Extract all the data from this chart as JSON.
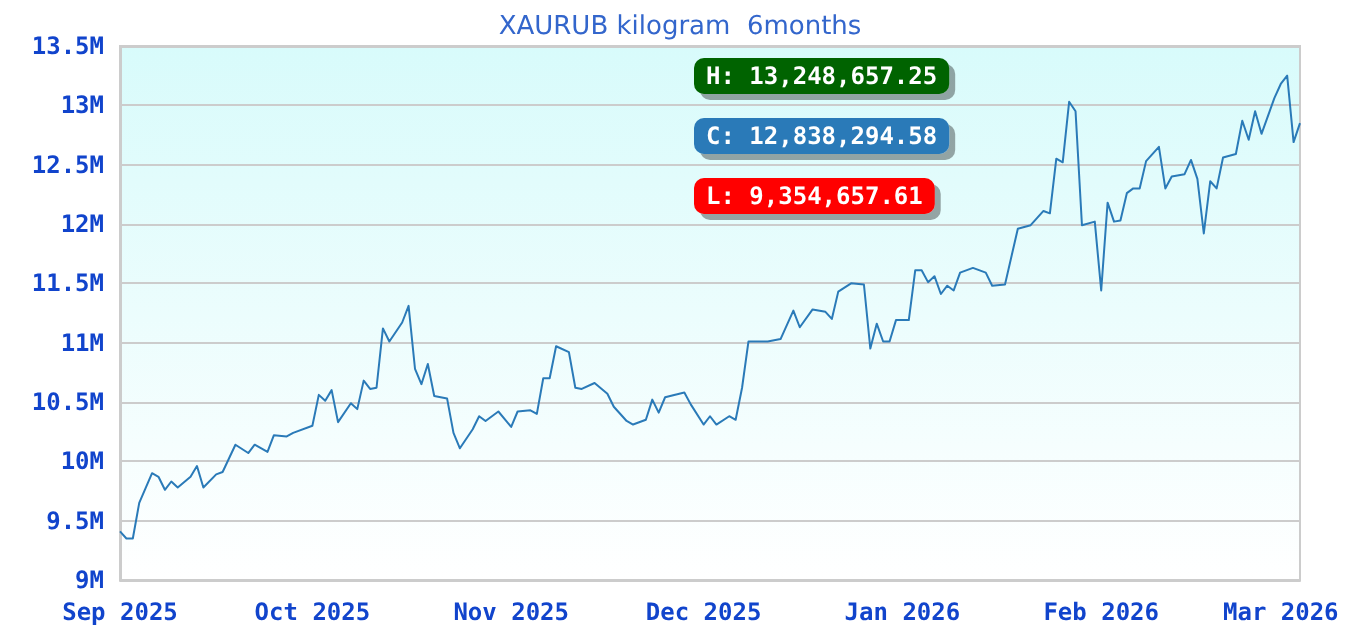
{
  "chart_data": {
    "type": "line",
    "title": "XAURUB kilogram  6months",
    "x": [
      "2025-09-01",
      "2025-09-02",
      "2025-09-03",
      "2025-09-04",
      "2025-09-06",
      "2025-09-07",
      "2025-09-08",
      "2025-09-09",
      "2025-09-10",
      "2025-09-12",
      "2025-09-13",
      "2025-09-14",
      "2025-09-16",
      "2025-09-17",
      "2025-09-19",
      "2025-09-21",
      "2025-09-22",
      "2025-09-24",
      "2025-09-25",
      "2025-09-27",
      "2025-09-28",
      "2025-10-01",
      "2025-10-02",
      "2025-10-03",
      "2025-10-04",
      "2025-10-05",
      "2025-10-07",
      "2025-10-08",
      "2025-10-09",
      "2025-10-10",
      "2025-10-11",
      "2025-10-12",
      "2025-10-13",
      "2025-10-15",
      "2025-10-16",
      "2025-10-17",
      "2025-10-18",
      "2025-10-19",
      "2025-10-20",
      "2025-10-22",
      "2025-10-23",
      "2025-10-24",
      "2025-10-26",
      "2025-10-27",
      "2025-10-28",
      "2025-10-30",
      "2025-11-01",
      "2025-11-02",
      "2025-11-04",
      "2025-11-05",
      "2025-11-06",
      "2025-11-07",
      "2025-11-08",
      "2025-11-10",
      "2025-11-11",
      "2025-11-12",
      "2025-11-14",
      "2025-11-16",
      "2025-11-17",
      "2025-11-19",
      "2025-11-20",
      "2025-11-22",
      "2025-11-23",
      "2025-11-24",
      "2025-11-25",
      "2025-11-28",
      "2025-11-29",
      "2025-12-01",
      "2025-12-02",
      "2025-12-03",
      "2025-12-05",
      "2025-12-06",
      "2025-12-07",
      "2025-12-08",
      "2025-12-11",
      "2025-12-13",
      "2025-12-15",
      "2025-12-16",
      "2025-12-18",
      "2025-12-20",
      "2025-12-21",
      "2025-12-22",
      "2025-12-24",
      "2025-12-26",
      "2025-12-27",
      "2025-12-28",
      "2025-12-29",
      "2025-12-30",
      "2025-12-31",
      "2026-01-02",
      "2026-01-03",
      "2026-01-04",
      "2026-01-05",
      "2026-01-06",
      "2026-01-07",
      "2026-01-08",
      "2026-01-09",
      "2026-01-10",
      "2026-01-12",
      "2026-01-14",
      "2026-01-15",
      "2026-01-17",
      "2026-01-19",
      "2026-01-21",
      "2026-01-23",
      "2026-01-24",
      "2026-01-25",
      "2026-01-26",
      "2026-01-27",
      "2026-01-28",
      "2026-01-29",
      "2026-01-31",
      "2026-02-01",
      "2026-02-02",
      "2026-02-03",
      "2026-02-04",
      "2026-02-05",
      "2026-02-06",
      "2026-02-07",
      "2026-02-08",
      "2026-02-10",
      "2026-02-11",
      "2026-02-12",
      "2026-02-14",
      "2026-02-15",
      "2026-02-16",
      "2026-02-17",
      "2026-02-18",
      "2026-02-19",
      "2026-02-20",
      "2026-02-22",
      "2026-02-23",
      "2026-02-24",
      "2026-02-25",
      "2026-02-26",
      "2026-02-28",
      "2026-03-01",
      "2026-03-02",
      "2026-03-03",
      "2026-03-04"
    ],
    "series": [
      {
        "color": "#2a7ab8",
        "values": [
          9410000,
          9350000,
          9350000,
          9650000,
          9900000,
          9870000,
          9760000,
          9830000,
          9780000,
          9870000,
          9960000,
          9780000,
          9890000,
          9910000,
          10140000,
          10070000,
          10140000,
          10080000,
          10220000,
          10210000,
          10240000,
          10300000,
          10560000,
          10510000,
          10600000,
          10330000,
          10490000,
          10440000,
          10680000,
          10610000,
          10620000,
          11120000,
          11010000,
          11170000,
          11310000,
          10780000,
          10650000,
          10820000,
          10550000,
          10530000,
          10240000,
          10110000,
          10270000,
          10380000,
          10340000,
          10420000,
          10290000,
          10420000,
          10430000,
          10400000,
          10700000,
          10700000,
          10970000,
          10920000,
          10620000,
          10610000,
          10660000,
          10570000,
          10460000,
          10340000,
          10310000,
          10350000,
          10520000,
          10410000,
          10540000,
          10580000,
          10480000,
          10310000,
          10380000,
          10310000,
          10380000,
          10350000,
          10620000,
          11010000,
          11010000,
          11030000,
          11270000,
          11130000,
          11280000,
          11260000,
          11200000,
          11430000,
          11500000,
          11490000,
          10950000,
          11160000,
          11010000,
          11010000,
          11190000,
          11190000,
          11610000,
          11610000,
          11510000,
          11560000,
          11410000,
          11480000,
          11440000,
          11590000,
          11630000,
          11590000,
          11480000,
          11490000,
          11960000,
          11990000,
          12110000,
          12090000,
          12550000,
          12520000,
          13030000,
          12950000,
          11990000,
          12020000,
          11440000,
          12180000,
          12020000,
          12030000,
          12260000,
          12300000,
          12300000,
          12530000,
          12650000,
          12300000,
          12400000,
          12420000,
          12540000,
          12380000,
          11920000,
          12360000,
          12300000,
          12560000,
          12590000,
          12870000,
          12710000,
          12950000,
          12760000,
          13060000,
          13180000,
          13250000,
          12690000,
          12850000
        ]
      }
    ],
    "xlim": [
      "2025-09-01",
      "2026-03-04"
    ],
    "xticks": [
      {
        "value": "2025-09-01",
        "label": "Sep 2025"
      },
      {
        "value": "2025-10-01",
        "label": "Oct 2025"
      },
      {
        "value": "2025-11-01",
        "label": "Nov 2025"
      },
      {
        "value": "2025-12-01",
        "label": "Dec 2025"
      },
      {
        "value": "2026-01-01",
        "label": "Jan 2026"
      },
      {
        "value": "2026-02-01",
        "label": "Feb 2026"
      },
      {
        "value": "2026-03-01",
        "label": "Mar 2026"
      }
    ],
    "ylim": [
      9000000,
      13500000
    ],
    "yticks": [
      {
        "value": 9000000,
        "label": "9M"
      },
      {
        "value": 9500000,
        "label": "9.5M"
      },
      {
        "value": 10000000,
        "label": "10M"
      },
      {
        "value": 10500000,
        "label": "10.5M"
      },
      {
        "value": 11000000,
        "label": "11M"
      },
      {
        "value": 11500000,
        "label": "11.5M"
      },
      {
        "value": 12000000,
        "label": "12M"
      },
      {
        "value": 12500000,
        "label": "12.5M"
      },
      {
        "value": 13000000,
        "label": "13M"
      },
      {
        "value": 13500000,
        "label": "13.5M"
      }
    ],
    "grid": "y",
    "marker": "none",
    "annotations": [
      "H: 13,248,657.25",
      "C: 12,838,294.58",
      "L: 9,354,657.61"
    ]
  }
}
